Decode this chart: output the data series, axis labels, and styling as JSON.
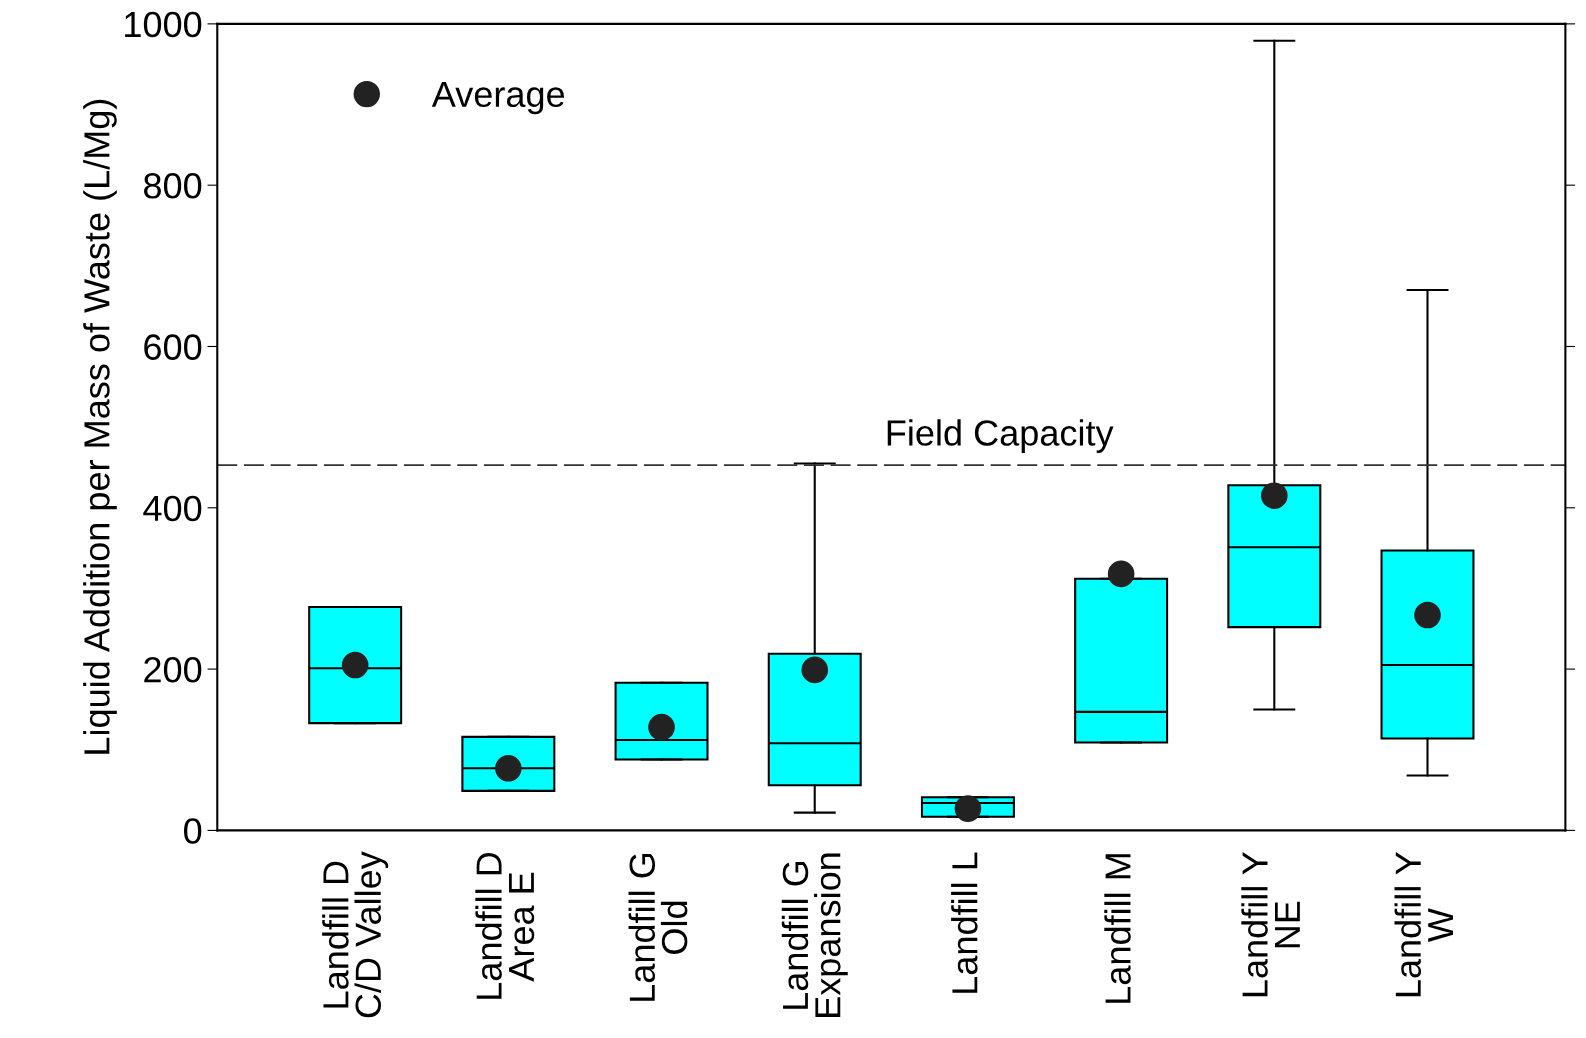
{
  "chart_data": {
    "type": "box",
    "ylabel": "Liquid Addition per Mass of Waste (L/Mg)",
    "categories": [
      "Landfill D\nC/D Valley",
      "Landfill D\nArea E",
      "Landfill G\nOld",
      "Landfill G\nExpansion",
      "Landfill L",
      "Landfill M",
      "Landfill Y\nNE",
      "Landfill Y\nW"
    ],
    "boxes": [
      {
        "low": 133,
        "q1": 133,
        "median": 201,
        "q3": 277,
        "high": 277
      },
      {
        "low": 49,
        "q1": 49,
        "median": 77,
        "q3": 116,
        "high": 116
      },
      {
        "low": 88,
        "q1": 88,
        "median": 112,
        "q3": 183,
        "high": 183
      },
      {
        "low": 22,
        "q1": 56,
        "median": 108,
        "q3": 219,
        "high": 455
      },
      {
        "low": 17,
        "q1": 17,
        "median": 34,
        "q3": 41,
        "high": 41
      },
      {
        "low": 109,
        "q1": 109,
        "median": 147,
        "q3": 312,
        "high": 312
      },
      {
        "low": 150,
        "q1": 252,
        "median": 351,
        "q3": 428,
        "high": 979
      },
      {
        "low": 68,
        "q1": 114,
        "median": 205,
        "q3": 347,
        "high": 670
      }
    ],
    "color": "#00ffff",
    "series": [
      {
        "type": "scatter",
        "name": "Average",
        "color": "#222222",
        "x": [
          "Landfill D\nC/D Valley",
          "Landfill D\nArea E",
          "Landfill G\nOld",
          "Landfill G\nExpansion",
          "Landfill L",
          "Landfill M",
          "Landfill Y\nNE",
          "Landfill Y\nW"
        ],
        "values": [
          205,
          77,
          128,
          199,
          27,
          318,
          415,
          267
        ]
      }
    ],
    "ref_lines": [
      {
        "axis": "y",
        "value": 453,
        "label": "Field Capacity",
        "color": "#333333",
        "line_style": "dashed"
      }
    ],
    "ylim": [
      0,
      1000
    ],
    "yticks": [
      0,
      200,
      400,
      600,
      800,
      1000
    ],
    "grid": false,
    "legend": "top left",
    "marker": "circle"
  }
}
